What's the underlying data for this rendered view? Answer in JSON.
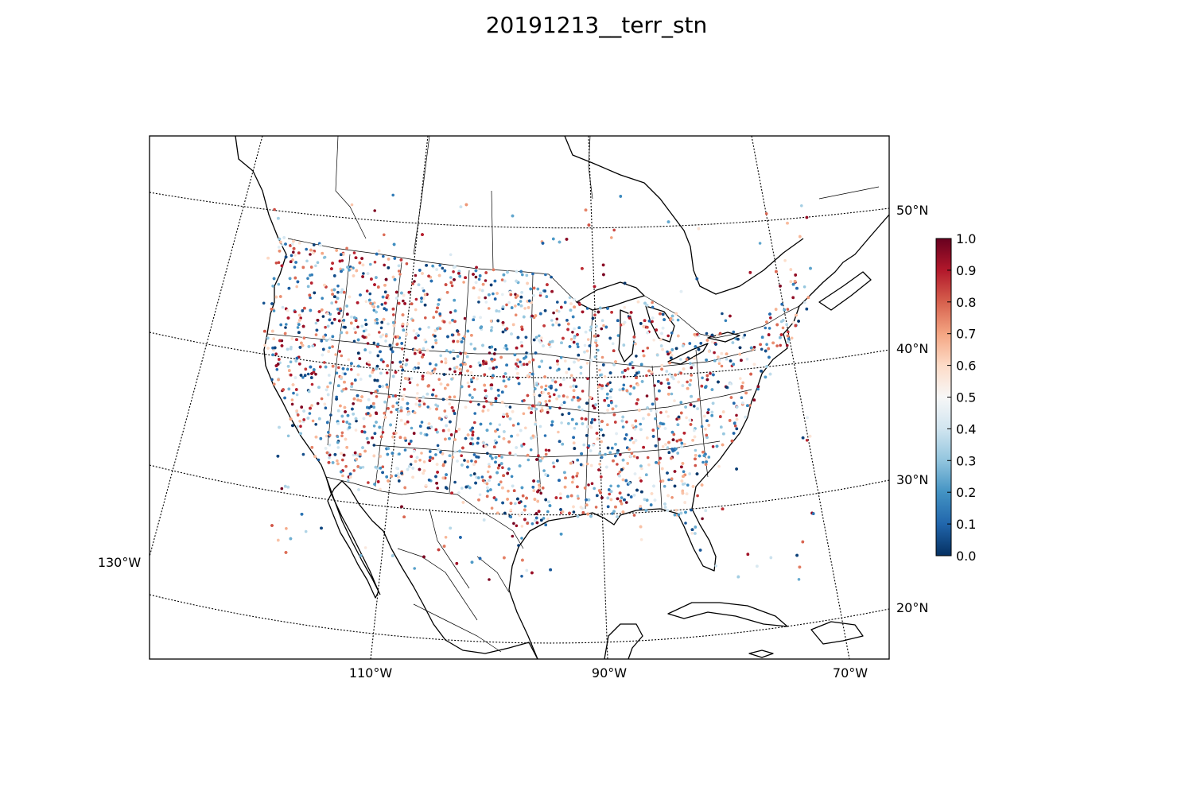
{
  "title": "20191213__terr_stn",
  "map": {
    "projection": "lambert-conformal",
    "longitude_labels": [
      "130°W",
      "110°W",
      "90°W",
      "70°W"
    ],
    "latitude_labels": [
      "50°N",
      "40°N",
      "30°N",
      "20°N"
    ],
    "meridians_deg": [
      -130,
      -110,
      -90,
      -70
    ],
    "parallels_deg": [
      50,
      40,
      30,
      20
    ],
    "point_count_approx": 6000
  },
  "colorbar": {
    "colormap": "RdBu_r",
    "min": 0.0,
    "max": 1.0,
    "tick_labels": [
      "1.0",
      "0.9",
      "0.8",
      "0.7",
      "0.6",
      "0.5",
      "0.4",
      "0.3",
      "0.2",
      "0.1",
      "0.0"
    ],
    "stops": [
      "#053061",
      "#2166ac",
      "#4393c3",
      "#92c5de",
      "#d1e5f0",
      "#f7f7f7",
      "#fddbc7",
      "#f4a582",
      "#d6604d",
      "#b2182b",
      "#67001f"
    ]
  },
  "colors": {
    "coastline": "#000000",
    "graticule": "#000000",
    "background": "#ffffff"
  }
}
